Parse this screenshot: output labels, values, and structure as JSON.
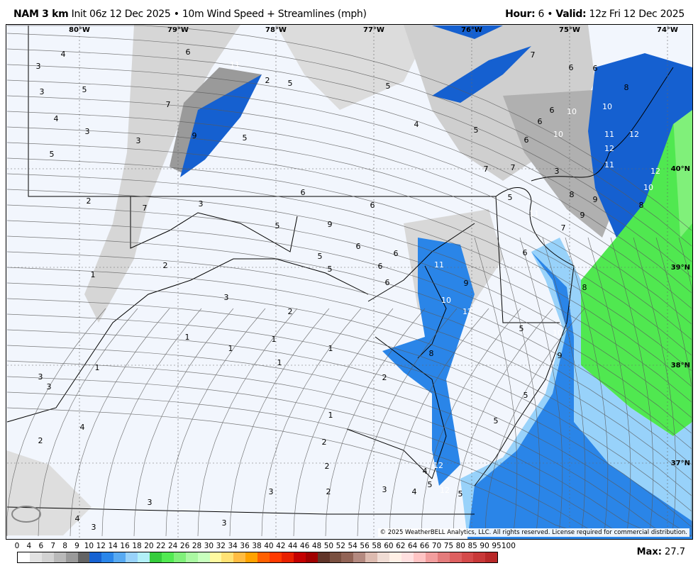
{
  "header": {
    "model": "NAM 3 km",
    "init": "Init 06z 12 Dec 2025",
    "separator": "•",
    "product": "10m Wind Speed + Streamlines (mph)",
    "hour_label": "Hour:",
    "hour_value": "6",
    "valid_label": "Valid:",
    "valid_value": "12z Fri 12 Dec 2025"
  },
  "map": {
    "lon_labels": [
      "80°W",
      "79°W",
      "78°W",
      "77°W",
      "76°W",
      "75°W",
      "74°W"
    ],
    "lat_labels": [
      "40°N",
      "39°N",
      "38°N",
      "37°N"
    ],
    "speed_labels": [
      "3",
      "4",
      "5",
      "3",
      "4",
      "3",
      "5",
      "7",
      "6",
      "11",
      "2",
      "5",
      "9",
      "5",
      "3",
      "5",
      "4",
      "5",
      "7",
      "3",
      "7",
      "6",
      "6",
      "7",
      "11",
      "8",
      "9",
      "6",
      "6",
      "8",
      "10",
      "10",
      "10",
      "11",
      "12",
      "12",
      "11",
      "12",
      "10",
      "8",
      "9",
      "7",
      "6",
      "5",
      "6",
      "5",
      "2",
      "7",
      "3",
      "6",
      "6",
      "5",
      "5",
      "6",
      "6",
      "6",
      "11",
      "9",
      "12",
      "6",
      "5",
      "10",
      "5",
      "5",
      "2",
      "1",
      "3",
      "2",
      "1",
      "1",
      "1",
      "3",
      "3",
      "1",
      "1",
      "2",
      "1",
      "1",
      "2",
      "2",
      "4",
      "4",
      "3",
      "3",
      "3",
      "3",
      "2",
      "3",
      "4",
      "5",
      "12",
      "4",
      "5",
      "2",
      "8",
      "12",
      "9",
      "10",
      "9",
      "8"
    ],
    "copyright": "© 2025 WeatherBELL Analytics, LLC. All rights reserved. License required for commercial distribution.",
    "logo_text": "WeatherBELL",
    "colors": {
      "land": "#f2f6fd",
      "ocean_blue": "#2a85e8",
      "deep_blue": "#1560d0",
      "green": "#50e850",
      "gray": "#b8b8b8"
    }
  },
  "colorbar": {
    "labels": [
      "0",
      "4",
      "6",
      "7",
      "8",
      "9",
      "10",
      "12",
      "14",
      "16",
      "18",
      "20",
      "22",
      "24",
      "26",
      "28",
      "30",
      "32",
      "34",
      "36",
      "38",
      "40",
      "42",
      "44",
      "46",
      "48",
      "50",
      "52",
      "54",
      "56",
      "58",
      "60",
      "62",
      "64",
      "66",
      "70",
      "75",
      "80",
      "85",
      "90",
      "95",
      "100"
    ],
    "colors": [
      "#ffffff",
      "#e2e2e2",
      "#d2d2d2",
      "#b9b9b9",
      "#9a9a9a",
      "#646464",
      "#1662d2",
      "#2a86ea",
      "#58aaf2",
      "#98d2fa",
      "#b2f0f8",
      "#36cc3c",
      "#52ea52",
      "#80f07a",
      "#aaf8a2",
      "#c8ffbe",
      "#fffaa0",
      "#ffe274",
      "#ffbc42",
      "#ffa200",
      "#ff6000",
      "#ff3a00",
      "#e82000",
      "#c40000",
      "#a00000",
      "#603428",
      "#7a5040",
      "#926456",
      "#b48a80",
      "#ddbbb0",
      "#f0dcd4",
      "#fff0e6",
      "#ffe0e0",
      "#ffc4c4",
      "#f29e9e",
      "#e47c7c",
      "#de6060",
      "#d44a4a",
      "#c83838",
      "#b82828",
      "#a82020"
    ]
  },
  "max": {
    "label": "Max:",
    "value": "27.7"
  }
}
